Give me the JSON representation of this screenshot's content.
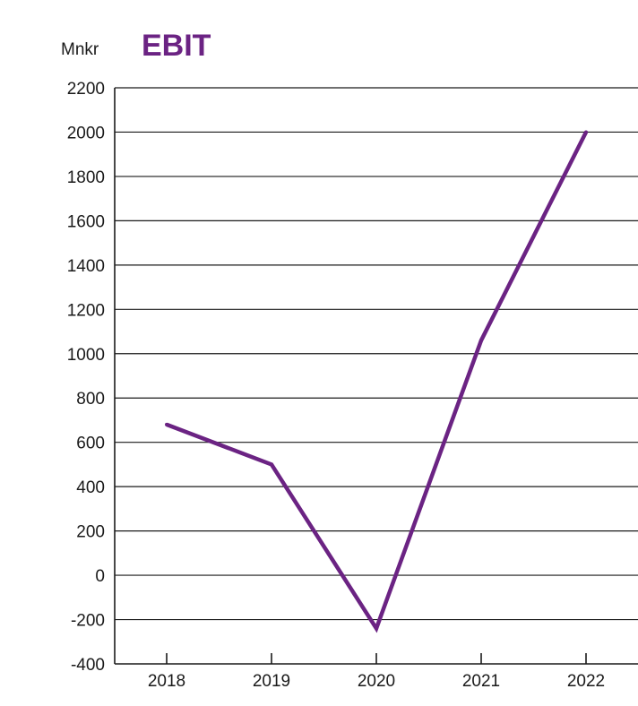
{
  "chart_data": {
    "type": "line",
    "title": "EBIT",
    "ylabel": "Mnkr",
    "xlabel": "",
    "categories": [
      "2018",
      "2019",
      "2020",
      "2021",
      "2022"
    ],
    "series": [
      {
        "values": [
          680,
          500,
          -240,
          1060,
          2000
        ]
      }
    ],
    "ylim": [
      -400,
      2200
    ],
    "yticks": [
      2200,
      2000,
      1800,
      1600,
      1400,
      1200,
      1000,
      800,
      600,
      400,
      200,
      0,
      -200,
      -400
    ],
    "grid": true,
    "line_color": "#6b2383",
    "title_color": "#6b2383"
  }
}
